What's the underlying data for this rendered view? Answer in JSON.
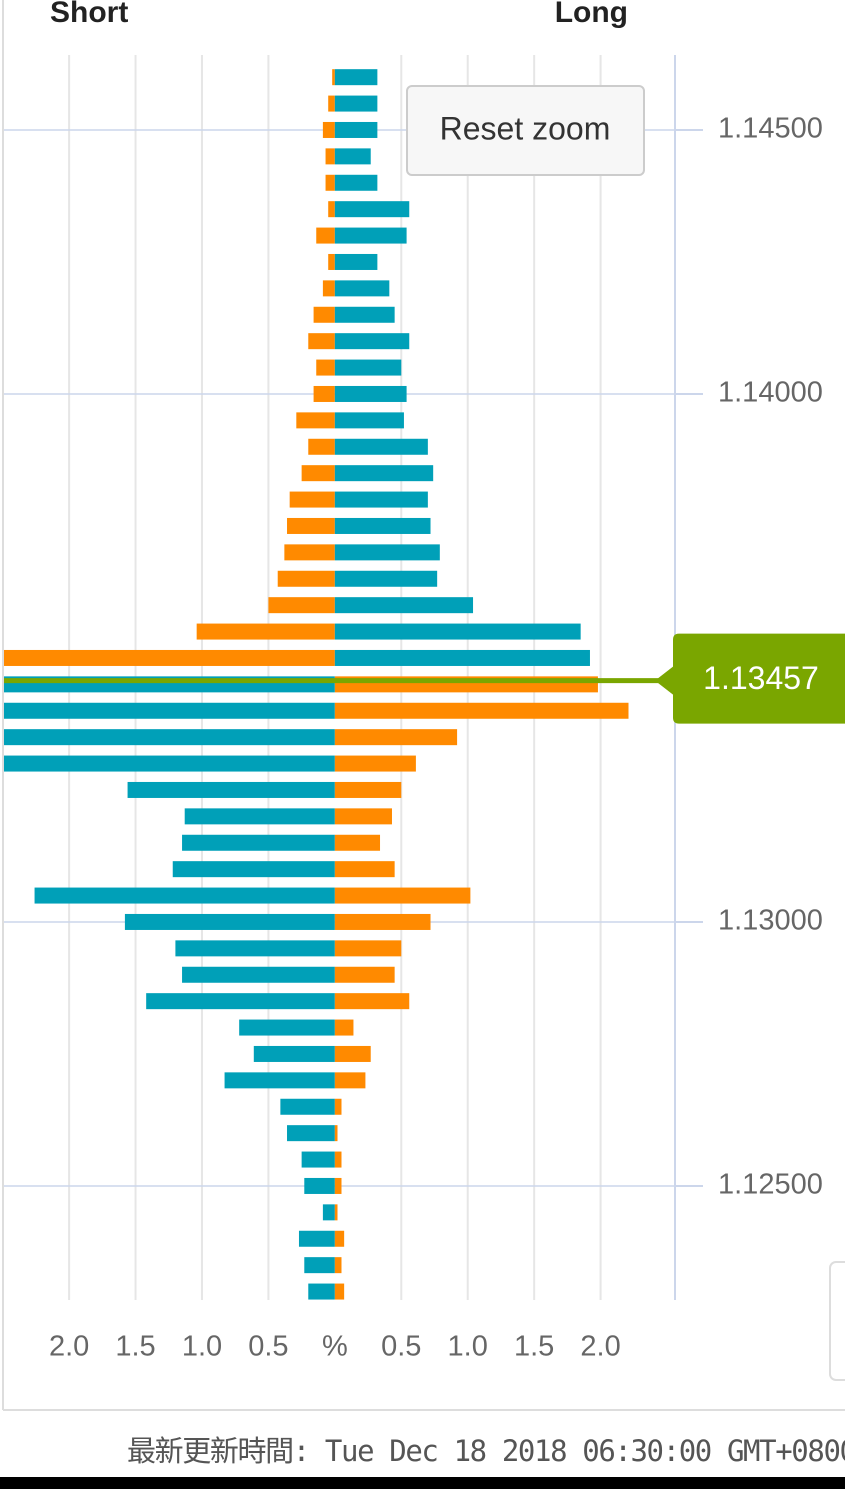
{
  "chart_data": {
    "type": "diverging-bar",
    "title_left": "Short",
    "title_right": "Long",
    "reset_button": "Reset zoom",
    "footer": "最新更新時間: Tue Dec 18 2018 06:30:00 GMT+0800",
    "current_price": 1.13457,
    "current_price_color": "#7aa600",
    "y": [
      1.146,
      1.1455,
      1.145,
      1.1445,
      1.144,
      1.1435,
      1.143,
      1.1425,
      1.142,
      1.1415,
      1.141,
      1.1405,
      1.14,
      1.1395,
      1.139,
      1.1385,
      1.138,
      1.1375,
      1.137,
      1.1365,
      1.136,
      1.1355,
      1.135,
      1.1345,
      1.134,
      1.1335,
      1.133,
      1.1325,
      1.132,
      1.1315,
      1.131,
      1.1305,
      1.13,
      1.1295,
      1.129,
      1.1285,
      1.128,
      1.1275,
      1.127,
      1.1265,
      1.126,
      1.1255,
      1.125,
      1.1245,
      1.124,
      1.1235,
      1.123
    ],
    "series": [
      {
        "side": "left",
        "color": "#ff8a00",
        "values": [
          0.02,
          0.05,
          0.09,
          0.07,
          0.07,
          0.05,
          0.14,
          0.05,
          0.09,
          0.16,
          0.2,
          0.14,
          0.16,
          0.29,
          0.2,
          0.25,
          0.34,
          0.36,
          0.38,
          0.43,
          0.5,
          1.04,
          2.6,
          null,
          null,
          null,
          null,
          null,
          null,
          null,
          null,
          null,
          null,
          null,
          null,
          null,
          null,
          null,
          null,
          null,
          null,
          null,
          null,
          null,
          null,
          null,
          null
        ]
      },
      {
        "side": "right",
        "color": "#00a0b8",
        "values": [
          0.32,
          0.32,
          0.32,
          0.27,
          0.32,
          0.56,
          0.54,
          0.32,
          0.41,
          0.45,
          0.56,
          0.5,
          0.54,
          0.52,
          0.7,
          0.74,
          0.7,
          0.72,
          0.79,
          0.77,
          1.04,
          1.85,
          1.92,
          null,
          null,
          null,
          null,
          null,
          null,
          null,
          null,
          null,
          null,
          null,
          null,
          null,
          null,
          null,
          null,
          null,
          null,
          null,
          null,
          null,
          null,
          null,
          null
        ]
      },
      {
        "side": "left",
        "color": "#00a0b8",
        "values": [
          null,
          null,
          null,
          null,
          null,
          null,
          null,
          null,
          null,
          null,
          null,
          null,
          null,
          null,
          null,
          null,
          null,
          null,
          null,
          null,
          null,
          null,
          null,
          2.6,
          2.6,
          2.6,
          2.6,
          1.56,
          1.13,
          1.15,
          1.22,
          2.26,
          1.58,
          1.2,
          1.15,
          1.42,
          0.72,
          0.61,
          0.83,
          0.41,
          0.36,
          0.25,
          0.23,
          0.09,
          0.27,
          0.23,
          0.2
        ]
      },
      {
        "side": "right",
        "color": "#ff8a00",
        "values": [
          null,
          null,
          null,
          null,
          null,
          null,
          null,
          null,
          null,
          null,
          null,
          null,
          null,
          null,
          null,
          null,
          null,
          null,
          null,
          null,
          null,
          null,
          null,
          1.98,
          2.21,
          0.92,
          0.61,
          0.5,
          0.43,
          0.34,
          0.45,
          1.02,
          0.72,
          0.5,
          0.45,
          0.56,
          0.14,
          0.27,
          0.23,
          0.05,
          0.02,
          0.05,
          0.05,
          0.02,
          0.07,
          0.05,
          0.07
        ]
      }
    ],
    "xlim": [
      -2.49,
      2.56
    ],
    "xticks": [
      {
        "value": -2,
        "label": "2.0"
      },
      {
        "value": -1.5,
        "label": "1.5"
      },
      {
        "value": -1,
        "label": "1.0"
      },
      {
        "value": -0.5,
        "label": "0.5"
      },
      {
        "value": 0,
        "label": "%"
      },
      {
        "value": 0.5,
        "label": "0.5"
      },
      {
        "value": 1,
        "label": "1.0"
      },
      {
        "value": 1.5,
        "label": "1.5"
      },
      {
        "value": 2,
        "label": "2.0"
      }
    ],
    "ylim": [
      1.12284,
      1.14642
    ],
    "yticks": [
      {
        "value": 1.125,
        "label": "1.12500"
      },
      {
        "value": 1.13,
        "label": "1.13000"
      },
      {
        "value": 1.14,
        "label": "1.14000"
      },
      {
        "value": 1.145,
        "label": "1.14500"
      }
    ],
    "grid": true
  }
}
